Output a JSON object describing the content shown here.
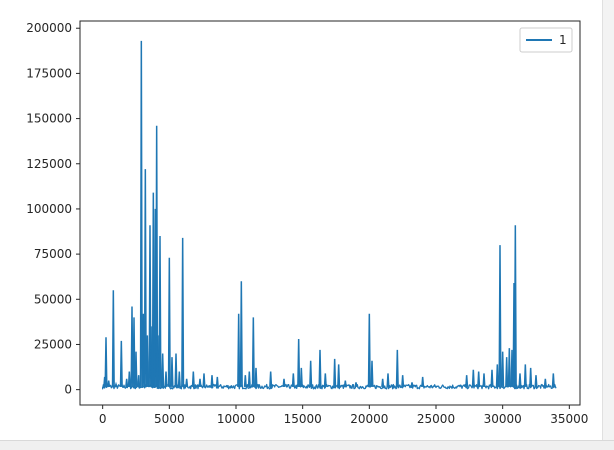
{
  "chart_data": {
    "type": "line",
    "title": "",
    "xlabel": "",
    "ylabel": "",
    "xlim": [
      -1700,
      35800
    ],
    "ylim": [
      -8500,
      204000
    ],
    "xticks": [
      0,
      5000,
      10000,
      15000,
      20000,
      25000,
      30000,
      35000
    ],
    "yticks": [
      0,
      25000,
      50000,
      75000,
      100000,
      125000,
      150000,
      175000,
      200000
    ],
    "xtick_labels": [
      "0",
      "5000",
      "10000",
      "15000",
      "20000",
      "25000",
      "30000",
      "35000"
    ],
    "ytick_labels": [
      "0",
      "25000",
      "50000",
      "75000",
      "100000",
      "125000",
      "150000",
      "175000",
      "200000"
    ],
    "grid": false,
    "legend": {
      "position": "top-right",
      "entries": [
        "1"
      ]
    },
    "series": [
      {
        "name": "1",
        "color": "#1f77b4",
        "baseline": 1500,
        "x_end": 34000,
        "spikes": [
          [
            150,
            7000
          ],
          [
            250,
            29000
          ],
          [
            450,
            5000
          ],
          [
            800,
            55000
          ],
          [
            1000,
            3000
          ],
          [
            1400,
            27000
          ],
          [
            1800,
            6000
          ],
          [
            2000,
            10000
          ],
          [
            2200,
            46000
          ],
          [
            2350,
            40000
          ],
          [
            2500,
            21000
          ],
          [
            2700,
            8000
          ],
          [
            2900,
            193000
          ],
          [
            3050,
            42000
          ],
          [
            3200,
            122000
          ],
          [
            3350,
            30000
          ],
          [
            3550,
            91000
          ],
          [
            3700,
            35000
          ],
          [
            3800,
            109000
          ],
          [
            3950,
            100000
          ],
          [
            4050,
            146000
          ],
          [
            4150,
            30000
          ],
          [
            4300,
            85000
          ],
          [
            4500,
            20000
          ],
          [
            4750,
            10000
          ],
          [
            5000,
            73000
          ],
          [
            5200,
            18000
          ],
          [
            5500,
            20000
          ],
          [
            5750,
            10000
          ],
          [
            6000,
            84000
          ],
          [
            6300,
            6000
          ],
          [
            6800,
            10000
          ],
          [
            7300,
            6000
          ],
          [
            7600,
            9000
          ],
          [
            8200,
            8000
          ],
          [
            8600,
            7000
          ],
          [
            10200,
            42000
          ],
          [
            10400,
            60000
          ],
          [
            10700,
            8000
          ],
          [
            11000,
            10000
          ],
          [
            11300,
            40000
          ],
          [
            11500,
            12000
          ],
          [
            12600,
            10000
          ],
          [
            13600,
            6000
          ],
          [
            14300,
            9000
          ],
          [
            14700,
            28000
          ],
          [
            14900,
            12000
          ],
          [
            15600,
            16000
          ],
          [
            16300,
            22000
          ],
          [
            16700,
            9000
          ],
          [
            17400,
            17000
          ],
          [
            17700,
            14000
          ],
          [
            18200,
            5000
          ],
          [
            19000,
            4000
          ],
          [
            20000,
            42000
          ],
          [
            20200,
            16000
          ],
          [
            21000,
            6000
          ],
          [
            21400,
            9000
          ],
          [
            22100,
            22000
          ],
          [
            22500,
            8000
          ],
          [
            23200,
            4000
          ],
          [
            24000,
            7000
          ],
          [
            27300,
            8000
          ],
          [
            27800,
            11000
          ],
          [
            28200,
            10000
          ],
          [
            28600,
            9000
          ],
          [
            29200,
            11000
          ],
          [
            29600,
            14000
          ],
          [
            29800,
            80000
          ],
          [
            30000,
            21000
          ],
          [
            30300,
            18000
          ],
          [
            30500,
            23000
          ],
          [
            30700,
            22000
          ],
          [
            30850,
            59000
          ],
          [
            30950,
            91000
          ],
          [
            31300,
            9000
          ],
          [
            31700,
            14000
          ],
          [
            32100,
            12000
          ],
          [
            32500,
            8000
          ],
          [
            33200,
            6000
          ],
          [
            33800,
            9000
          ]
        ]
      }
    ]
  }
}
